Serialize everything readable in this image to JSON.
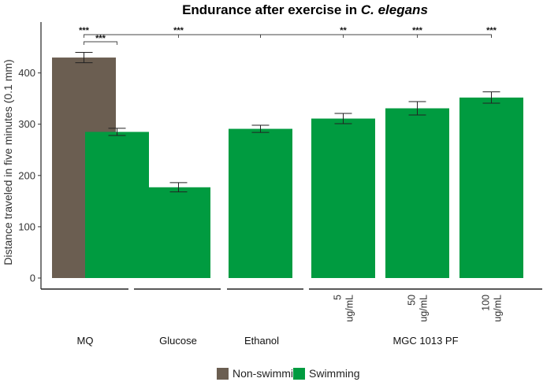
{
  "chart_data": {
    "type": "bar",
    "title_prefix": "Endurance after exercise in ",
    "title_italic": "C. elegans",
    "ylabel": "Distance traveled in five minutes (0.1 mm)",
    "xlabel": "",
    "ylim": [
      0,
      460
    ],
    "yticks": [
      0,
      100,
      200,
      300,
      400
    ],
    "groups": [
      "MQ",
      "Glucose",
      "Ethanol",
      "MGC 1013 PF"
    ],
    "series_colors": {
      "Non-swimming": "#6b5e51",
      "Swimming": "#009b40"
    },
    "bars": [
      {
        "group": "MQ",
        "series": "Non-swimming",
        "sublabel": "",
        "value": 430,
        "error": 10
      },
      {
        "group": "MQ",
        "series": "Swimming",
        "sublabel": "",
        "value": 285,
        "error": 7
      },
      {
        "group": "Glucose",
        "series": "Swimming",
        "sublabel": "",
        "value": 177,
        "error": 9
      },
      {
        "group": "Ethanol",
        "series": "Swimming",
        "sublabel": "",
        "value": 291,
        "error": 7
      },
      {
        "group": "MGC 1013 PF",
        "series": "Swimming",
        "sublabel": "5 ug/mL",
        "sublabel_lines": [
          "5",
          "ug/mL"
        ],
        "value": 311,
        "error": 10
      },
      {
        "group": "MGC 1013 PF",
        "series": "Swimming",
        "sublabel": "50 ug/mL",
        "sublabel_lines": [
          "50",
          "ug/mL"
        ],
        "value": 331,
        "error": 13
      },
      {
        "group": "MGC 1013 PF",
        "series": "Swimming",
        "sublabel": "100 ug/mL",
        "sublabel_lines": [
          "100",
          "ug/mL"
        ],
        "value": 352,
        "error": 11
      }
    ],
    "significance": [
      {
        "from_bar": 0,
        "to_bar": 1,
        "label": "***"
      },
      {
        "from_bar": 0,
        "to_bar": 3,
        "label": "***",
        "mid_label_bar": 2
      },
      {
        "from_bar": 3,
        "to_bar": 6,
        "label": "**",
        "to_bars": [
          4,
          5,
          6
        ],
        "labels": [
          "**",
          "***",
          "***"
        ]
      }
    ],
    "legend": {
      "position": "bottom",
      "entries": [
        {
          "name": "Non-swimming",
          "color": "#6b5e51"
        },
        {
          "name": "Swimming",
          "color": "#009b40"
        }
      ]
    }
  }
}
